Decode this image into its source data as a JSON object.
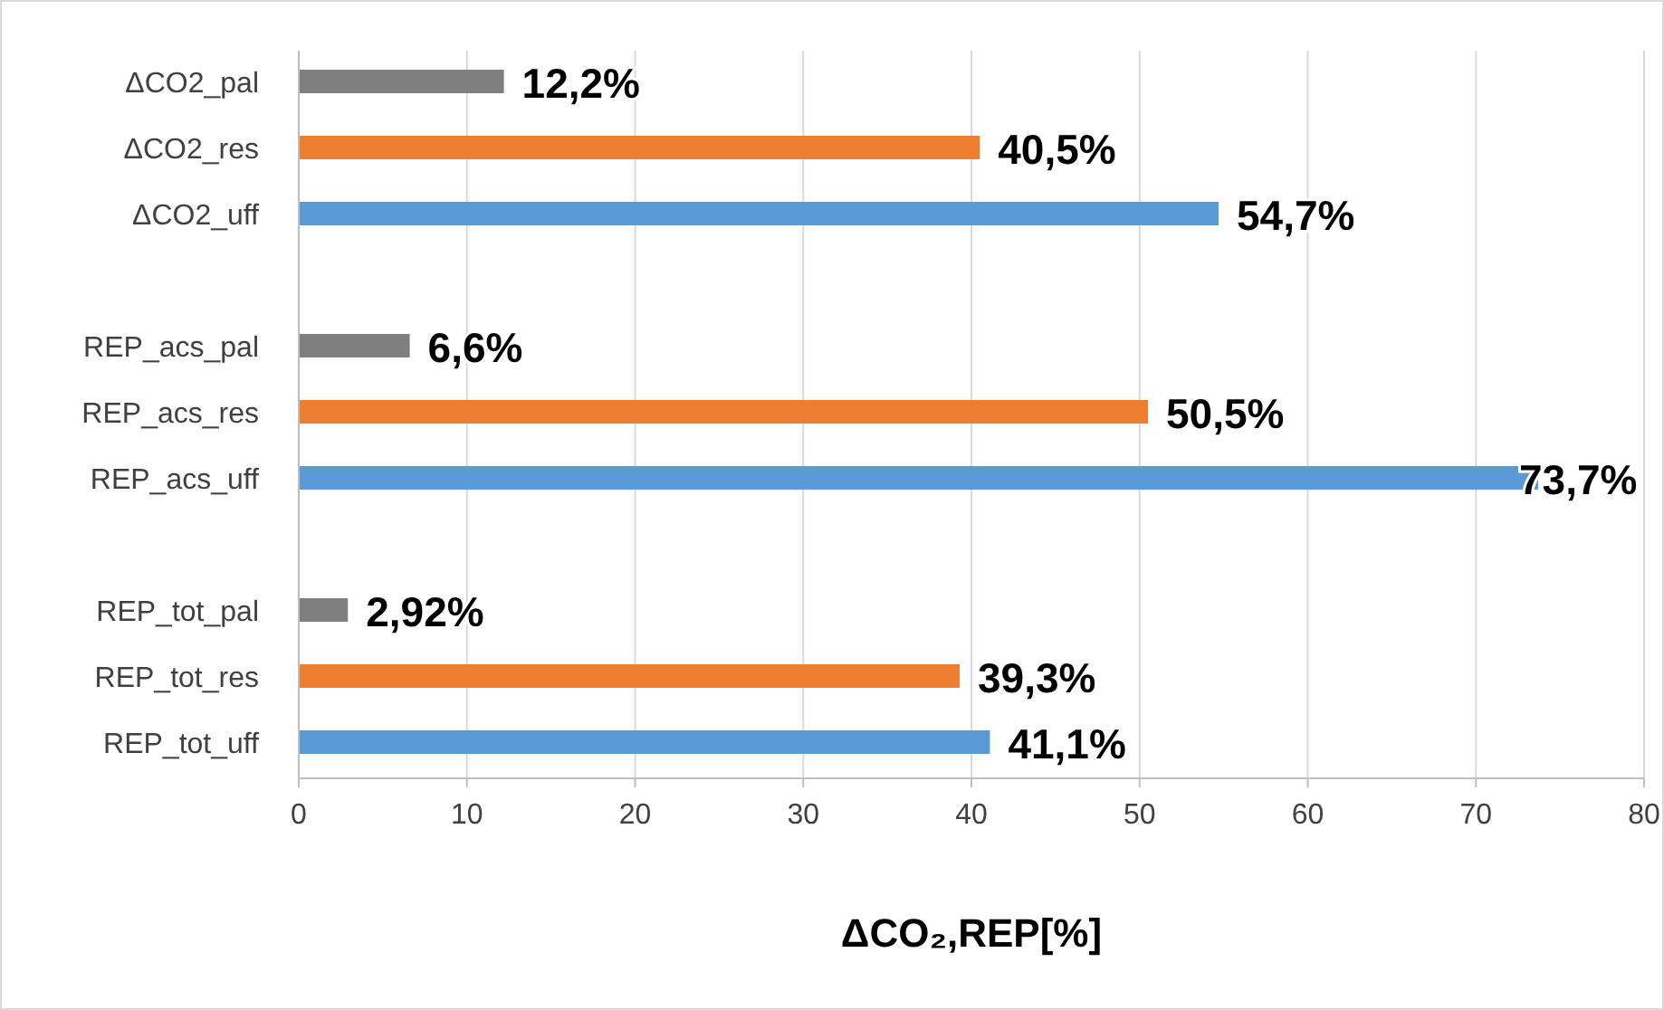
{
  "chart_data": {
    "type": "bar",
    "orientation": "horizontal",
    "xlabel": "ΔCO₂,REP[%]",
    "categories": [
      "ΔCO2_pal",
      "ΔCO2_res",
      "ΔCO2_uff",
      null,
      "REP_acs_pal",
      "REP_acs_res",
      "REP_acs_uff",
      null,
      "REP_tot_pal",
      "REP_tot_res",
      "REP_tot_uff"
    ],
    "values": [
      12.2,
      40.5,
      54.7,
      null,
      6.6,
      50.5,
      73.7,
      null,
      2.92,
      39.3,
      41.1
    ],
    "colors": [
      "#7f7f7f",
      "#ed7d31",
      "#5b9bd5",
      null,
      "#7f7f7f",
      "#ed7d31",
      "#5b9bd5",
      null,
      "#7f7f7f",
      "#ed7d31",
      "#5b9bd5"
    ],
    "value_labels": [
      "12,2%",
      "40,5%",
      "54,7%",
      null,
      "6,6%",
      "50,5%",
      "73,7%",
      null,
      "2,92%",
      "39,3%",
      "41,1%"
    ],
    "xlim": [
      0,
      80
    ],
    "xticks": [
      0,
      10,
      20,
      30,
      40,
      50,
      60,
      70,
      80
    ],
    "grid": "x"
  }
}
